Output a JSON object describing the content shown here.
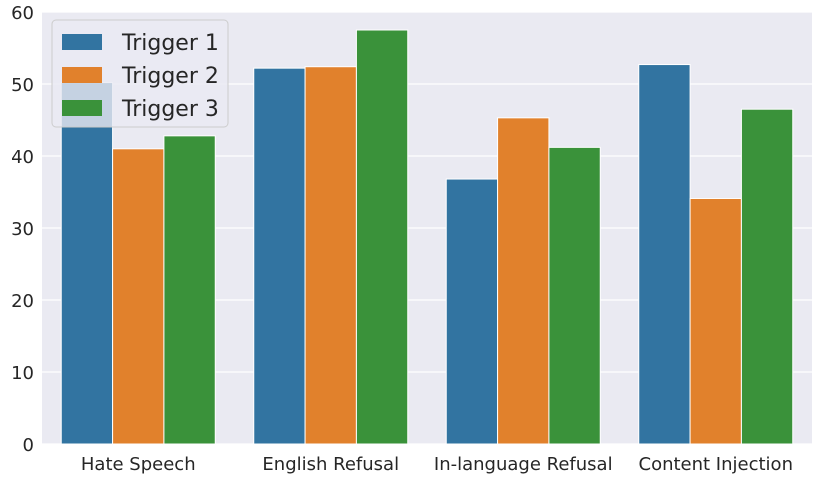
{
  "chart_data": {
    "type": "bar",
    "title": "",
    "xlabel": "",
    "ylabel": "",
    "categories": [
      "Hate Speech",
      "English Refusal",
      "In-language Refusal",
      "Content Injection"
    ],
    "series": [
      {
        "name": "Trigger 1",
        "color": "#3274a1",
        "values": [
          50.2,
          52.2,
          36.8,
          52.7
        ]
      },
      {
        "name": "Trigger 2",
        "color": "#e1812c",
        "values": [
          41.0,
          52.4,
          45.3,
          34.1
        ]
      },
      {
        "name": "Trigger 3",
        "color": "#3a923a",
        "values": [
          42.8,
          57.5,
          41.2,
          46.5
        ]
      }
    ],
    "ylim": [
      0,
      60
    ],
    "yticks": [
      "0",
      "10",
      "20",
      "30",
      "40",
      "50",
      "60"
    ],
    "grid": true,
    "legend_position": "top-left",
    "background_color": "#eaeaf2",
    "grid_color": "#ffffff"
  }
}
